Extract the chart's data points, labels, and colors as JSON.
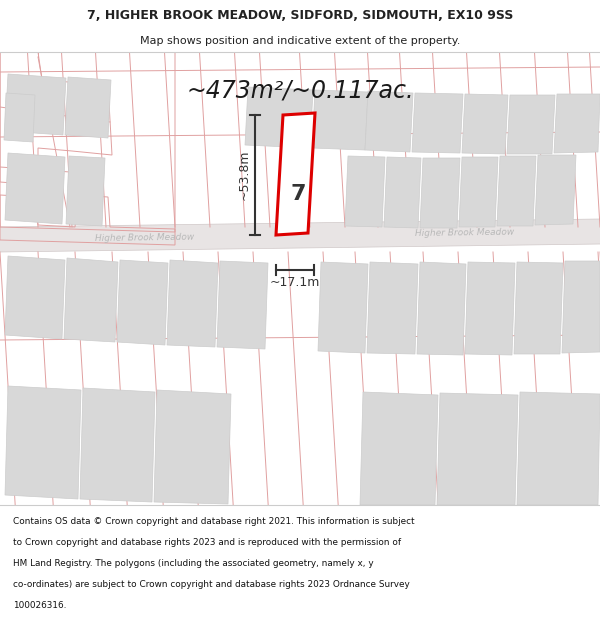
{
  "title_line1": "7, HIGHER BROOK MEADOW, SIDFORD, SIDMOUTH, EX10 9SS",
  "title_line2": "Map shows position and indicative extent of the property.",
  "area_text": "~473m²/~0.117ac.",
  "width_label": "~17.1m",
  "height_label": "~53.8m",
  "property_number": "7",
  "street_name_left": "Higher Brook Meadow",
  "street_name_right": "Higher Brook Meadow",
  "footer_text": "Contains OS data © Crown copyright and database right 2021. This information is subject to Crown copyright and database rights 2023 and is reproduced with the permission of HM Land Registry. The polygons (including the associated geometry, namely x, y co-ordinates) are subject to Crown copyright and database rights 2023 Ordnance Survey 100026316.",
  "map_bg": "#f8f4f4",
  "panel_bg": "#ffffff",
  "road_fill": "#e8e4e4",
  "building_fill": "#d8d8d8",
  "building_edge": "#cccccc",
  "plot_line_color": "#e0a0a0",
  "highlight_red": "#dd0000",
  "dim_color": "#333333",
  "street_color": "#b8b8b8",
  "text_color": "#222222"
}
